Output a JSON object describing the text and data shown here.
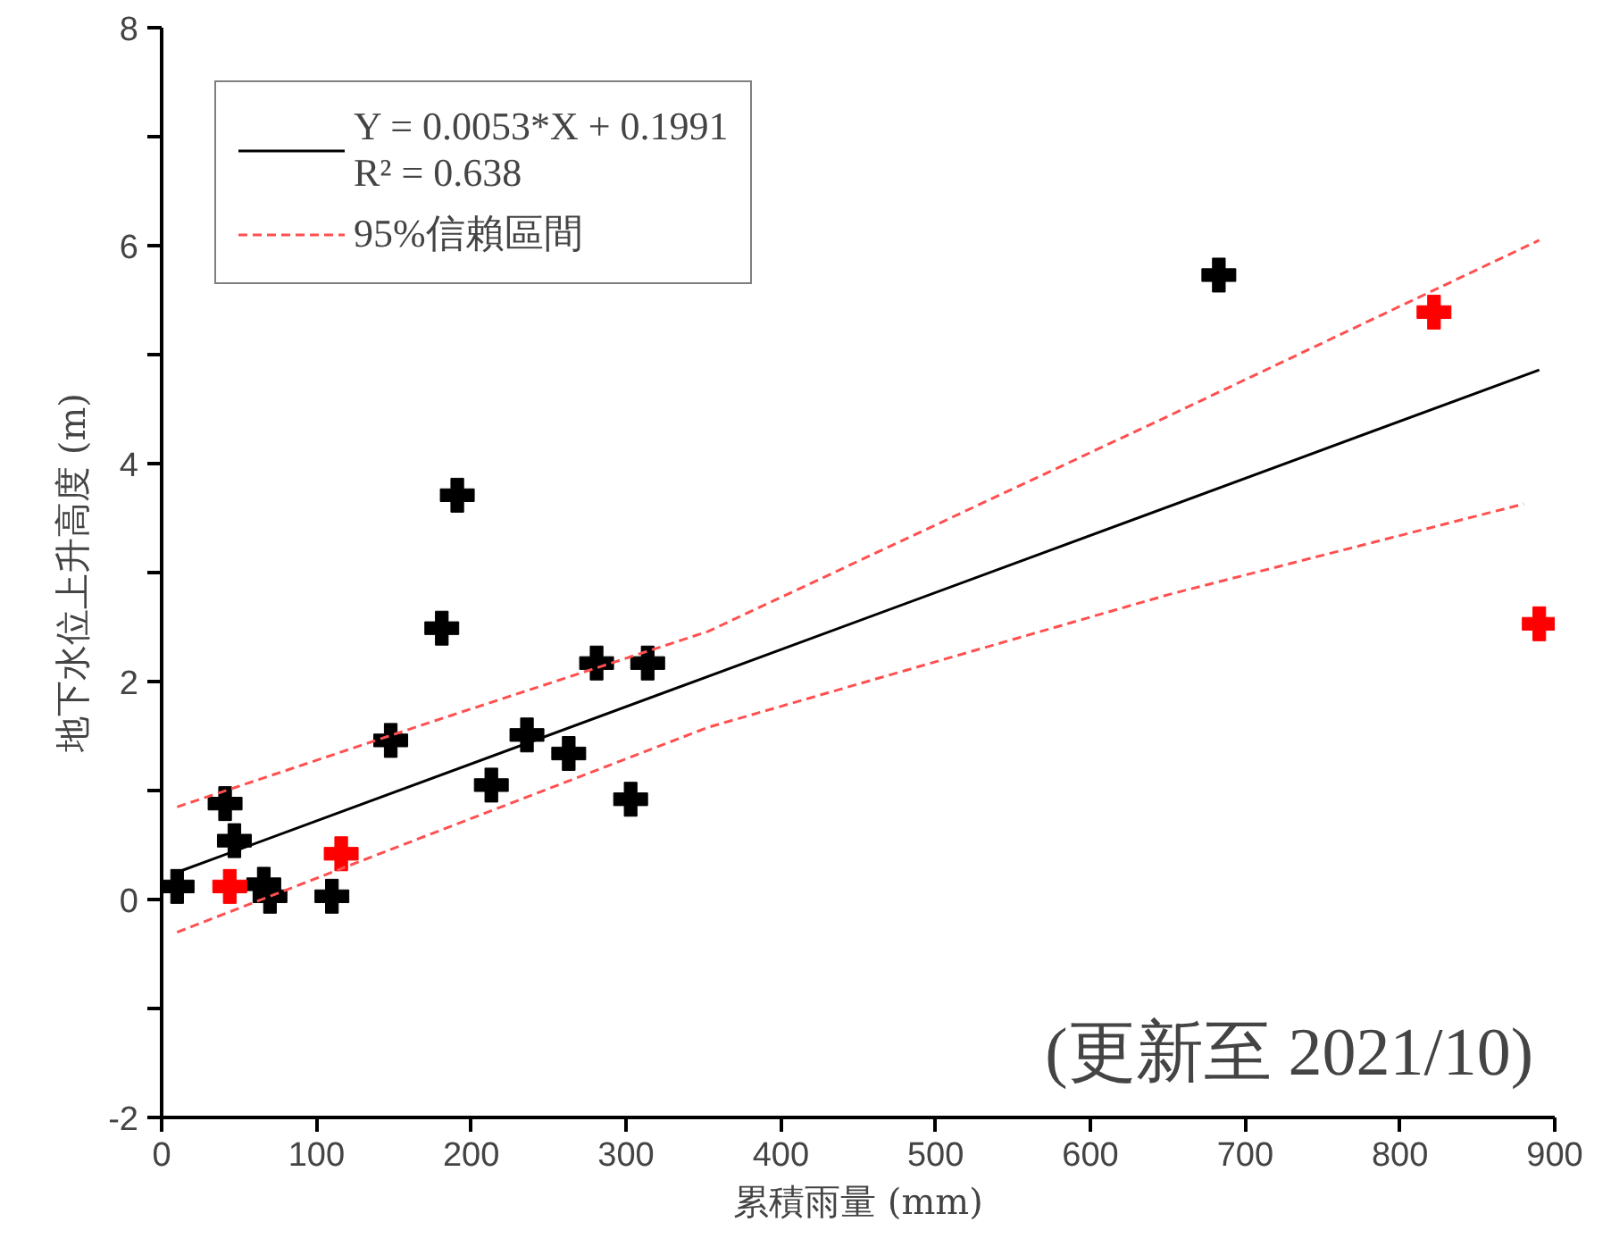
{
  "chart_data": {
    "type": "scatter",
    "xlabel": "累積雨量 (mm)",
    "ylabel": "地下水位上升高度 (m)",
    "xlim": [
      0,
      900
    ],
    "ylim": [
      -2,
      8
    ],
    "xticks": [
      0,
      100,
      200,
      300,
      400,
      500,
      600,
      700,
      800,
      900
    ],
    "yticks": [
      -2,
      {
        "value": -1,
        "label": null
      },
      0,
      {
        "value": 1,
        "label": null
      },
      2,
      {
        "value": 3,
        "label": null
      },
      4,
      {
        "value": 5,
        "label": null
      },
      6,
      {
        "value": 7,
        "label": null
      },
      8
    ],
    "grid": false,
    "legend": "top left",
    "marker": "cross",
    "series": [
      {
        "color": "#000000",
        "x": [
          10,
          41,
          47,
          66,
          70,
          110,
          148,
          181,
          191,
          213,
          236,
          263,
          281,
          314,
          303,
          683
        ],
        "values": [
          0.12,
          0.88,
          0.54,
          0.14,
          0.03,
          0.03,
          1.46,
          2.49,
          3.71,
          1.05,
          1.51,
          1.34,
          2.17,
          2.17,
          0.92,
          5.73
        ]
      },
      {
        "color": "#ff0000",
        "x": [
          44,
          116,
          822,
          890
        ],
        "values": [
          0.12,
          0.42,
          5.39,
          2.53
        ]
      },
      {
        "type": "line",
        "name": "Y = 0.0053*X + 0.1991\nR² = 0.638",
        "marker": "none",
        "color": "#000000",
        "line_style": "solid",
        "x": [
          10,
          890
        ],
        "values": [
          0.25,
          4.86
        ]
      },
      {
        "type": "line",
        "name": "95%信賴區間",
        "marker": "none",
        "color": "#ff5050",
        "line_style": "dashed",
        "x": [
          10,
          170,
          353,
          651,
          890
        ],
        "values": [
          0.85,
          1.61,
          2.46,
          4.44,
          6.05
        ]
      },
      {
        "type": "line",
        "marker": "none",
        "color": "#ff5050",
        "line_style": "dashed",
        "x": [
          10,
          170,
          353,
          651,
          880
        ],
        "values": [
          -0.3,
          0.58,
          1.58,
          2.8,
          3.63
        ]
      }
    ],
    "annotations": [
      "(更新至 2021/10)"
    ]
  }
}
